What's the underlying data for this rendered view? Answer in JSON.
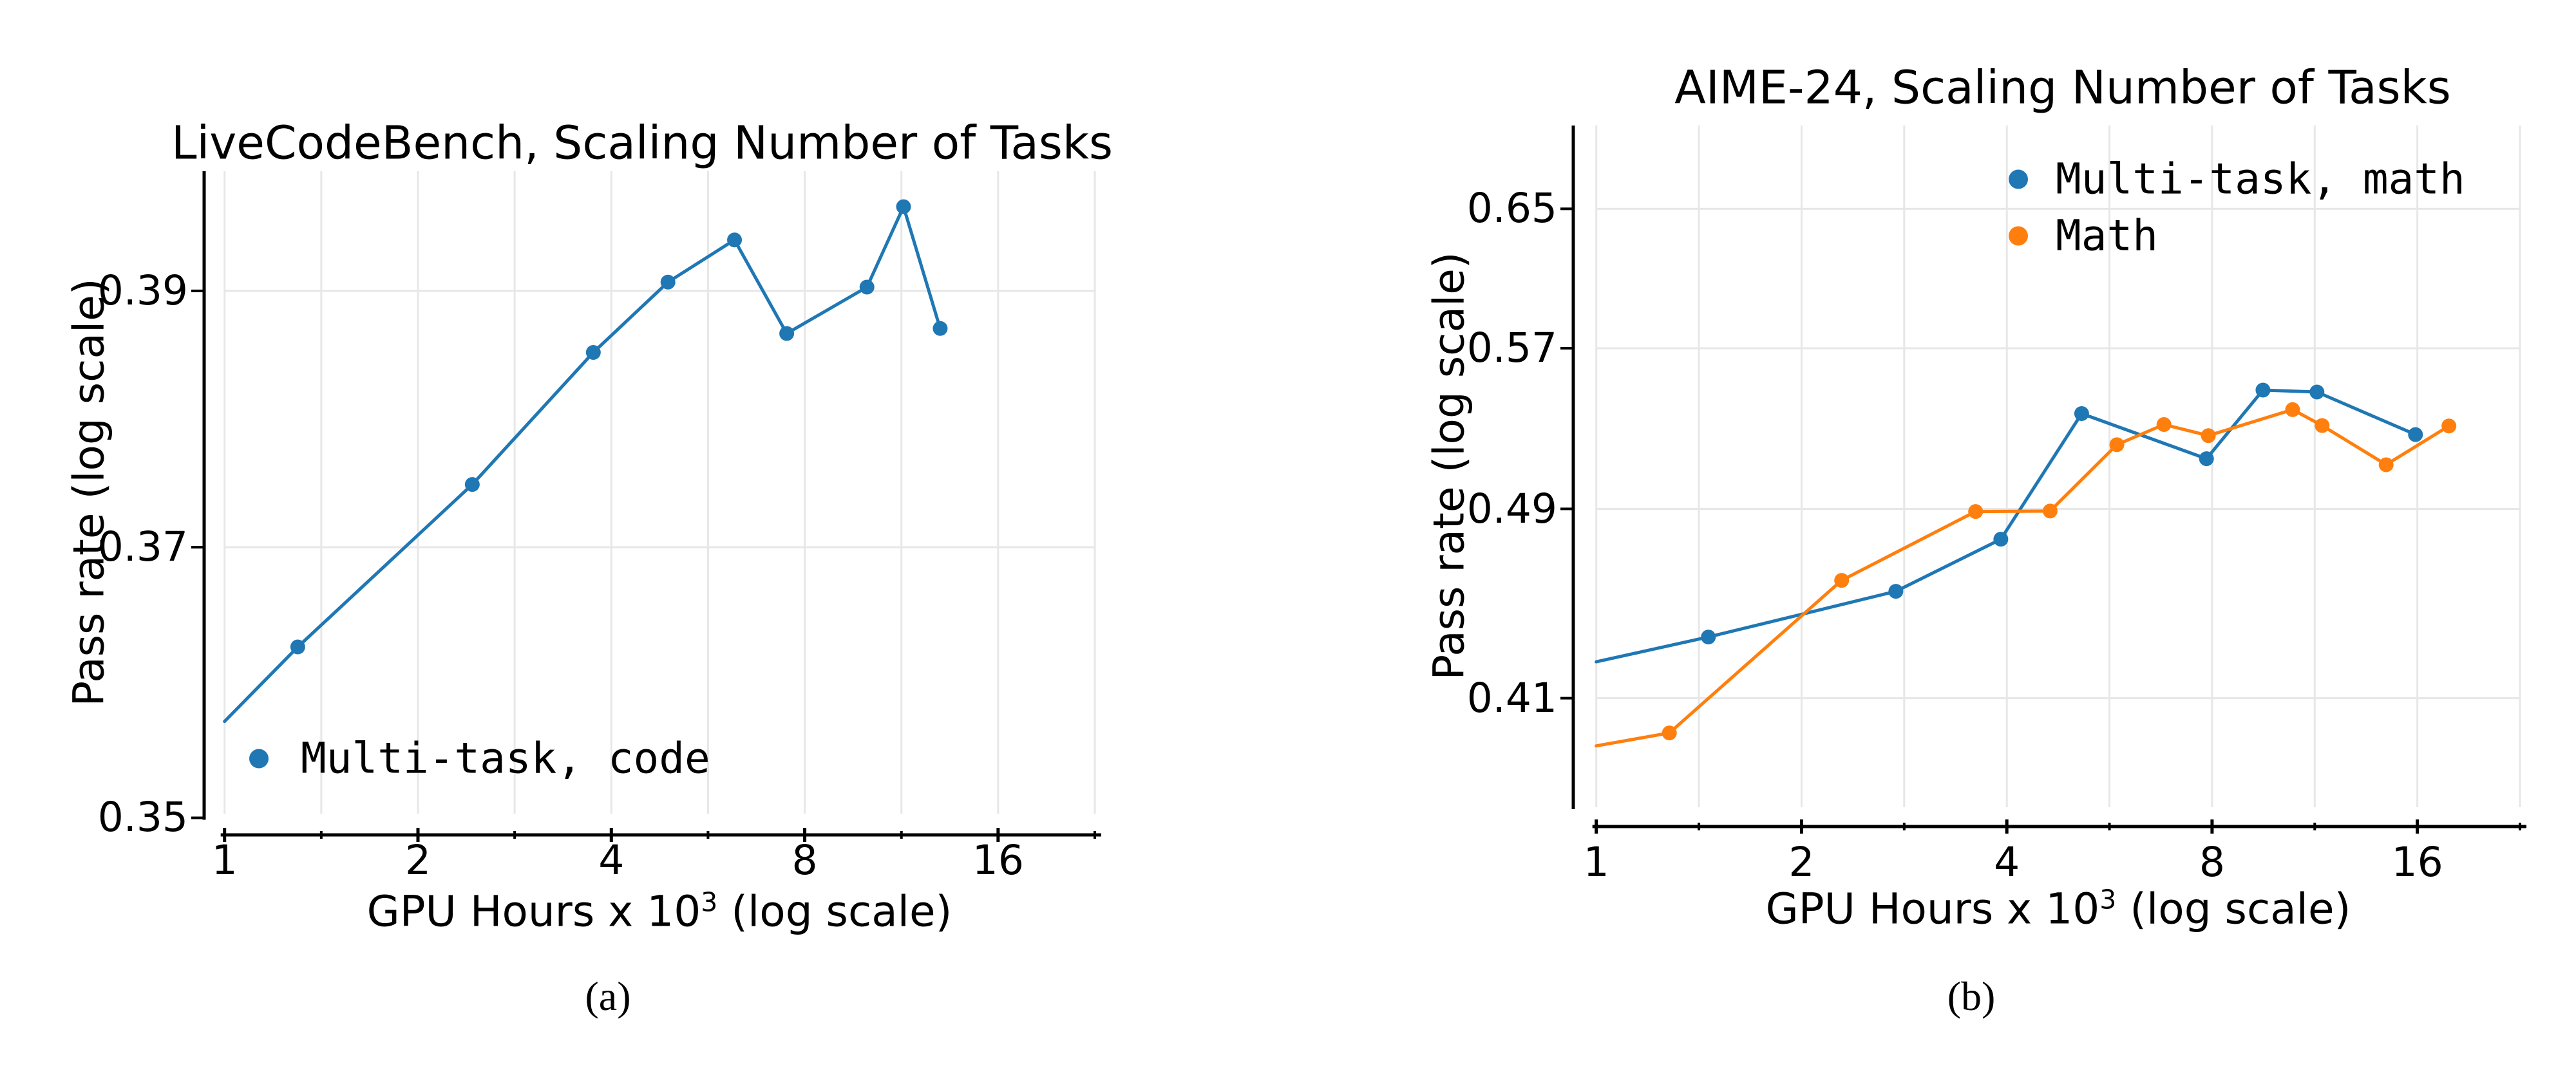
{
  "colors": {
    "blue": "#1f77b4",
    "orange": "#ff7f0e",
    "grid": "#e7e7e7",
    "axis": "#000000",
    "background": "#ffffff"
  },
  "captions": [
    {
      "label": "(a)"
    },
    {
      "label": "(b)"
    }
  ],
  "chart_data": [
    {
      "type": "line",
      "title": "LiveCodeBench, Scaling Number of Tasks",
      "ylabel": "Pass rate (log scale)",
      "xlabel_pre": "GPU Hours x 10",
      "xlabel_sup": "3",
      "xlabel_post": " (log scale)",
      "xscale": "log2",
      "yscale": "log10",
      "xlim": [
        1,
        22.627
      ],
      "ylim": [
        0.3503,
        0.3997
      ],
      "xticks": [
        1,
        2,
        4,
        8,
        16
      ],
      "xtick_labels": [
        "1",
        "2",
        "4",
        "8",
        "16"
      ],
      "yticks": [
        0.35,
        0.37,
        0.39
      ],
      "ytick_labels": [
        "0.35",
        "0.37",
        "0.39"
      ],
      "grid": "on",
      "legend_position": "lower left",
      "series": [
        {
          "name": "Multi-task, code",
          "color": "#1f77b4",
          "first_point_marker_hidden": true,
          "x": [
            1.0,
            1.3,
            2.43,
            3.75,
            4.9,
            6.22,
            7.5,
            10.0,
            11.4,
            13.0
          ],
          "y": [
            0.357,
            0.3625,
            0.3748,
            0.3851,
            0.3907,
            0.3941,
            0.3866,
            0.3903,
            0.3968,
            0.387
          ]
        }
      ]
    },
    {
      "type": "line",
      "title": "AIME-24, Scaling Number of Tasks",
      "ylabel": "Pass rate (log scale)",
      "xlabel_pre": "GPU Hours x 10",
      "xlabel_sup": "3",
      "xlabel_post": " (log scale)",
      "xscale": "log2",
      "yscale": "log10",
      "xlim": [
        1,
        22.627
      ],
      "ylim": [
        0.37,
        0.703
      ],
      "xticks": [
        1,
        2,
        4,
        8,
        16
      ],
      "xtick_labels": [
        "1",
        "2",
        "4",
        "8",
        "16"
      ],
      "yticks": [
        0.41,
        0.49,
        0.57,
        0.65
      ],
      "ytick_labels": [
        "0.41",
        "0.49",
        "0.57",
        "0.65"
      ],
      "grid": "on",
      "legend_position": "upper right",
      "series": [
        {
          "name": "Multi-task, math",
          "color": "#1f77b4",
          "first_point_marker_hidden": true,
          "x": [
            1.0,
            1.46,
            2.75,
            3.92,
            5.15,
            7.85,
            9.5,
            11.4,
            15.9
          ],
          "y": [
            0.4243,
            0.4343,
            0.4534,
            0.4762,
            0.536,
            0.5137,
            0.548,
            0.547,
            0.5255
          ]
        },
        {
          "name": "Math",
          "color": "#ff7f0e",
          "first_point_marker_hidden": true,
          "x": [
            1.0,
            1.28,
            2.29,
            3.6,
            4.63,
            5.8,
            6.8,
            7.9,
            10.5,
            11.6,
            14.4,
            17.8
          ],
          "y": [
            0.392,
            0.3968,
            0.4581,
            0.4888,
            0.489,
            0.5205,
            0.5305,
            0.525,
            0.538,
            0.53,
            0.5108,
            0.5298
          ]
        }
      ]
    }
  ]
}
